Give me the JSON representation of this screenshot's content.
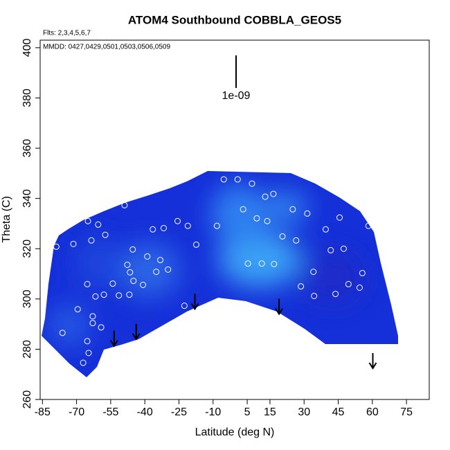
{
  "chart_data": {
    "type": "heatmap",
    "title": "ATOM4 Southbound COBBLA_GEOS5",
    "subtitle": "Flts: 2,3,4,5,6,7",
    "annotation": "MMDD: 0427,0429,0501,0503,0506,0509",
    "xlabel": "Latitude (deg N)",
    "ylabel": "Theta (C)",
    "xlim": [
      -86,
      85
    ],
    "ylim": [
      260,
      403
    ],
    "xticks": [
      -85,
      -70,
      -55,
      -40,
      -25,
      -10,
      5,
      15,
      30,
      45,
      60,
      75
    ],
    "yticks": [
      260,
      280,
      300,
      320,
      340,
      360,
      380,
      400
    ],
    "scale_label": "1e-09",
    "points": {
      "color": "#ffffff",
      "x": [
        -78.9,
        -71.4,
        -65.0,
        -63.5,
        -60.5,
        -57.4,
        -48.9,
        -45.3,
        -47.7,
        -38.9,
        -36.5,
        -31.7,
        -25.6,
        -21.1,
        -17.4,
        -8.3,
        -5.3,
        0.8,
        3.2,
        7.1,
        9.2,
        12.9,
        13.8,
        16.5,
        20.5,
        25.0,
        26.5,
        31.4,
        39.5,
        41.7,
        45.6,
        47.4,
        5.3,
        11.4,
        16.8,
        28.6,
        34.1,
        34.4,
        43.8,
        49.5,
        55.6,
        54.4,
        58.3,
        -65.3,
        -61.7,
        -58.0,
        -54.1,
        -51.4,
        -46.8,
        -45.0,
        -40.8,
        -46.5,
        -35.0,
        -29.8,
        -33.2,
        -69.5,
        -62.9,
        -59.2,
        -76.2,
        -65.3,
        -64.7,
        -67.1,
        -22.6,
        -62.9
      ],
      "y": [
        320.8,
        321.9,
        331.0,
        323.3,
        329.6,
        325.5,
        337.3,
        319.7,
        313.6,
        316.9,
        327.7,
        328.2,
        331.0,
        329.1,
        321.6,
        329.1,
        347.6,
        347.6,
        335.7,
        345.9,
        332.1,
        340.7,
        331.0,
        341.8,
        324.9,
        335.7,
        323.3,
        334.0,
        327.7,
        319.4,
        332.4,
        320.0,
        314.1,
        314.1,
        313.9,
        305.0,
        310.8,
        301.2,
        302.0,
        305.9,
        310.3,
        304.5,
        329.1,
        305.9,
        301.0,
        301.7,
        306.1,
        301.4,
        301.7,
        307.2,
        305.6,
        310.6,
        310.8,
        311.7,
        315.5,
        295.9,
        293.1,
        288.7,
        286.5,
        283.2,
        278.5,
        274.6,
        297.3,
        290.4
      ]
    },
    "arrows": {
      "color": "#000000",
      "x": [
        -53.5,
        -43.8,
        -18.0,
        19.0,
        60.2
      ],
      "y": [
        281.3,
        284.0,
        296.0,
        294.0,
        272.4
      ]
    }
  }
}
